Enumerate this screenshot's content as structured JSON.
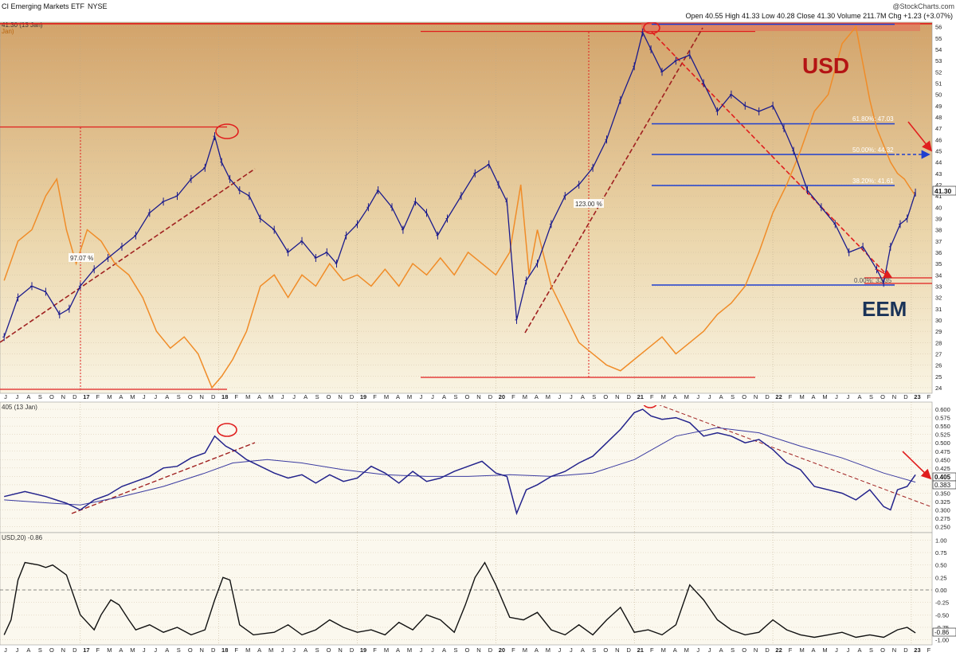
{
  "header": {
    "symbol_name": "CI Emerging Markets ETF",
    "exchange": "NYSE",
    "watermark": "@StockCharts.com",
    "ohlc": "Open 40.55  High 41.33  Low 40.28  Close 41.30  Volume 211.7M  Chg +1.23 (+3.07%)",
    "tag_price": "41.30 (13 Jan)",
    "tag_usd": "Jan)",
    "tag_mid": "405 (13 Jan)",
    "tag_corr": "USD,20) -0.86"
  },
  "annotations": {
    "usd_label": "USD",
    "eem_label": "EEM",
    "pct_1": "97.07 %",
    "pct_2": "123.00 %",
    "fib_618": "61.80%: 47.03",
    "fib_50": "50.00%: 44.32",
    "fib_382": "38.20%: 41.61",
    "fib_0": "0.00%: 33.35",
    "current_price": "41.30",
    "ratio_now": "0.405",
    "ratio_ma": "0.383",
    "corr_now": "-0.86"
  },
  "colors": {
    "price": "#1a1a8c",
    "usd": "#f08c28",
    "ratio": "#23238c",
    "corr": "#111111",
    "annotation": "#e01e1e",
    "fib": "#1f3fd0",
    "trend": "#a02020",
    "usd_text": "#b41414",
    "eem_text": "#1a3358"
  },
  "chart_data": [
    {
      "type": "line",
      "panel": "price",
      "title": "CI Emerging Markets ETF",
      "ylim": [
        23.5,
        56.4
      ],
      "y_ticks": [
        24,
        25,
        26,
        27,
        28,
        29,
        30,
        31,
        32,
        33,
        34,
        35,
        36,
        37,
        38,
        39,
        40,
        41,
        42,
        43,
        44,
        45,
        46,
        47,
        48,
        49,
        50,
        51,
        52,
        53,
        54,
        55,
        56
      ],
      "x_year_labels": [
        "17",
        "18",
        "19",
        "20",
        "21",
        "22",
        "23"
      ],
      "x_month_labels": [
        "J",
        "J",
        "A",
        "S",
        "O",
        "N",
        "D",
        "17",
        "F",
        "M",
        "A",
        "M",
        "J",
        "J",
        "A",
        "S",
        "O",
        "N",
        "D",
        "18",
        "F",
        "M",
        "A",
        "M",
        "J",
        "J",
        "A",
        "S",
        "O",
        "N",
        "D",
        "19",
        "F",
        "M",
        "A",
        "M",
        "J",
        "J",
        "A",
        "S",
        "O",
        "N",
        "D",
        "20",
        "F",
        "M",
        "A",
        "M",
        "J",
        "J",
        "A",
        "S",
        "O",
        "N",
        "D",
        "21",
        "F",
        "M",
        "A",
        "M",
        "J",
        "J",
        "A",
        "S",
        "O",
        "N",
        "D",
        "22",
        "F",
        "M",
        "A",
        "M",
        "J",
        "J",
        "A",
        "S",
        "O",
        "N",
        "D",
        "23",
        "F"
      ],
      "series": [
        {
          "name": "EEM",
          "x": [
            2016.45,
            2016.55,
            2016.65,
            2016.75,
            2016.85,
            2016.92,
            2017.0,
            2017.1,
            2017.2,
            2017.3,
            2017.4,
            2017.5,
            2017.6,
            2017.7,
            2017.8,
            2017.9,
            2017.97,
            2018.02,
            2018.08,
            2018.15,
            2018.22,
            2018.3,
            2018.4,
            2018.5,
            2018.6,
            2018.7,
            2018.78,
            2018.85,
            2018.92,
            2019.0,
            2019.08,
            2019.15,
            2019.25,
            2019.33,
            2019.42,
            2019.5,
            2019.58,
            2019.65,
            2019.75,
            2019.85,
            2019.95,
            2020.02,
            2020.08,
            2020.15,
            2020.22,
            2020.3,
            2020.4,
            2020.5,
            2020.6,
            2020.7,
            2020.8,
            2020.9,
            2021.0,
            2021.06,
            2021.12,
            2021.2,
            2021.3,
            2021.4,
            2021.5,
            2021.6,
            2021.7,
            2021.8,
            2021.9,
            2022.0,
            2022.08,
            2022.15,
            2022.25,
            2022.35,
            2022.45,
            2022.55,
            2022.65,
            2022.75,
            2022.8,
            2022.85,
            2022.92,
            2022.97,
            2023.03
          ],
          "values": [
            28.5,
            32.0,
            33.0,
            32.5,
            30.5,
            31.0,
            33.0,
            34.5,
            35.5,
            36.5,
            37.5,
            39.5,
            40.5,
            41.0,
            42.5,
            43.5,
            46.3,
            44.0,
            42.5,
            41.5,
            41.0,
            39.0,
            38.0,
            36.0,
            37.0,
            35.5,
            36.0,
            35.0,
            37.5,
            38.5,
            40.0,
            41.5,
            40.0,
            38.0,
            40.5,
            39.5,
            37.5,
            39.0,
            41.0,
            43.0,
            43.8,
            42.0,
            40.5,
            30.0,
            33.5,
            35.0,
            38.5,
            41.0,
            42.0,
            43.5,
            46.0,
            49.5,
            52.5,
            55.5,
            54.0,
            52.0,
            53.0,
            53.5,
            51.0,
            48.5,
            50.0,
            49.0,
            48.5,
            49.0,
            47.0,
            45.0,
            41.5,
            40.0,
            38.5,
            36.0,
            36.5,
            34.5,
            33.3,
            36.5,
            38.5,
            39.0,
            41.3
          ]
        },
        {
          "name": "USD",
          "x": [
            2016.45,
            2016.55,
            2016.65,
            2016.75,
            2016.83,
            2016.9,
            2016.97,
            2017.05,
            2017.15,
            2017.25,
            2017.35,
            2017.45,
            2017.55,
            2017.65,
            2017.75,
            2017.85,
            2017.95,
            2018.02,
            2018.1,
            2018.2,
            2018.3,
            2018.4,
            2018.5,
            2018.6,
            2018.7,
            2018.8,
            2018.9,
            2019.0,
            2019.1,
            2019.2,
            2019.3,
            2019.4,
            2019.5,
            2019.6,
            2019.7,
            2019.8,
            2019.9,
            2020.0,
            2020.1,
            2020.18,
            2020.24,
            2020.3,
            2020.4,
            2020.5,
            2020.6,
            2020.7,
            2020.8,
            2020.9,
            2021.0,
            2021.1,
            2021.2,
            2021.3,
            2021.4,
            2021.5,
            2021.6,
            2021.7,
            2021.8,
            2021.9,
            2022.0,
            2022.1,
            2022.2,
            2022.3,
            2022.4,
            2022.5,
            2022.6,
            2022.7,
            2022.75,
            2022.8,
            2022.85,
            2022.9,
            2022.95,
            2023.03
          ],
          "values": [
            33.5,
            37.0,
            38.0,
            41.0,
            42.5,
            38.0,
            35.0,
            38.0,
            37.0,
            35.0,
            34.0,
            32.0,
            29.0,
            27.5,
            28.5,
            27.0,
            24.0,
            25.0,
            26.5,
            29.0,
            33.0,
            34.0,
            32.0,
            34.0,
            33.0,
            35.0,
            33.5,
            34.0,
            33.0,
            34.5,
            33.0,
            35.0,
            34.0,
            35.5,
            34.0,
            36.0,
            35.0,
            34.0,
            36.0,
            42.0,
            34.0,
            38.0,
            33.0,
            30.5,
            28.0,
            27.0,
            26.0,
            25.5,
            26.5,
            27.5,
            28.5,
            27.0,
            28.0,
            29.0,
            30.5,
            31.5,
            33.0,
            36.0,
            39.5,
            42.0,
            45.0,
            48.5,
            50.0,
            54.5,
            56.0,
            49.5,
            47.0,
            45.5,
            44.0,
            43.0,
            42.5,
            41.0
          ]
        }
      ]
    },
    {
      "type": "line",
      "panel": "ratio",
      "ylim": [
        0.242,
        0.612
      ],
      "y_ticks": [
        0.25,
        0.275,
        0.3,
        0.325,
        0.35,
        0.375,
        0.4,
        0.425,
        0.45,
        0.475,
        0.5,
        0.525,
        0.55,
        0.575,
        0.6
      ],
      "series": [
        {
          "name": "",
          "x": [
            2016.45,
            2016.6,
            2016.75,
            2016.9,
            2017.0,
            2017.1,
            2017.2,
            2017.3,
            2017.4,
            2017.5,
            2017.6,
            2017.7,
            2017.8,
            2017.9,
            2017.97,
            2018.05,
            2018.12,
            2018.2,
            2018.3,
            2018.4,
            2018.5,
            2018.6,
            2018.7,
            2018.8,
            2018.9,
            2019.0,
            2019.1,
            2019.2,
            2019.3,
            2019.4,
            2019.5,
            2019.6,
            2019.7,
            2019.8,
            2019.9,
            2020.0,
            2020.08,
            2020.15,
            2020.22,
            2020.3,
            2020.4,
            2020.5,
            2020.6,
            2020.7,
            2020.8,
            2020.9,
            2021.0,
            2021.06,
            2021.12,
            2021.2,
            2021.3,
            2021.4,
            2021.5,
            2021.6,
            2021.7,
            2021.8,
            2021.9,
            2022.0,
            2022.1,
            2022.2,
            2022.3,
            2022.4,
            2022.5,
            2022.6,
            2022.7,
            2022.8,
            2022.85,
            2022.9,
            2022.97,
            2023.03
          ],
          "values": [
            0.34,
            0.355,
            0.34,
            0.32,
            0.3,
            0.33,
            0.345,
            0.37,
            0.385,
            0.4,
            0.425,
            0.43,
            0.455,
            0.47,
            0.52,
            0.49,
            0.475,
            0.45,
            0.43,
            0.41,
            0.395,
            0.405,
            0.38,
            0.405,
            0.385,
            0.395,
            0.43,
            0.41,
            0.38,
            0.415,
            0.385,
            0.395,
            0.415,
            0.43,
            0.445,
            0.41,
            0.4,
            0.29,
            0.36,
            0.375,
            0.4,
            0.415,
            0.44,
            0.46,
            0.5,
            0.54,
            0.59,
            0.6,
            0.58,
            0.57,
            0.575,
            0.56,
            0.52,
            0.53,
            0.52,
            0.5,
            0.51,
            0.48,
            0.44,
            0.42,
            0.37,
            0.36,
            0.35,
            0.33,
            0.36,
            0.31,
            0.3,
            0.36,
            0.37,
            0.405
          ]
        },
        {
          "name": "",
          "x": [
            2016.45,
            2016.8,
            2017.0,
            2017.3,
            2017.6,
            2017.9,
            2018.1,
            2018.35,
            2018.6,
            2018.9,
            2019.2,
            2019.5,
            2019.8,
            2020.1,
            2020.4,
            2020.7,
            2021.0,
            2021.3,
            2021.6,
            2021.9,
            2022.2,
            2022.5,
            2022.8,
            2023.03
          ],
          "values": [
            0.33,
            0.32,
            0.315,
            0.34,
            0.37,
            0.41,
            0.44,
            0.45,
            0.44,
            0.42,
            0.405,
            0.4,
            0.4,
            0.405,
            0.4,
            0.41,
            0.45,
            0.52,
            0.545,
            0.53,
            0.49,
            0.455,
            0.41,
            0.383
          ]
        }
      ]
    },
    {
      "type": "line",
      "panel": "correlation",
      "ylim": [
        -1.07,
        1.07
      ],
      "y_ticks": [
        -1.0,
        -0.75,
        -0.5,
        -0.25,
        0.0,
        0.25,
        0.5,
        0.75,
        1.0
      ],
      "series": [
        {
          "name": "",
          "x": [
            2016.45,
            2016.5,
            2016.55,
            2016.6,
            2016.7,
            2016.75,
            2016.8,
            2016.9,
            2017.0,
            2017.1,
            2017.15,
            2017.22,
            2017.28,
            2017.35,
            2017.4,
            2017.5,
            2017.6,
            2017.7,
            2017.8,
            2017.9,
            2017.97,
            2018.03,
            2018.08,
            2018.15,
            2018.25,
            2018.4,
            2018.5,
            2018.6,
            2018.7,
            2018.8,
            2018.9,
            2019.0,
            2019.1,
            2019.2,
            2019.3,
            2019.4,
            2019.5,
            2019.6,
            2019.7,
            2019.78,
            2019.85,
            2019.92,
            2020.0,
            2020.1,
            2020.2,
            2020.3,
            2020.4,
            2020.5,
            2020.6,
            2020.7,
            2020.8,
            2020.9,
            2021.0,
            2021.1,
            2021.2,
            2021.3,
            2021.4,
            2021.5,
            2021.6,
            2021.7,
            2021.8,
            2021.9,
            2022.0,
            2022.1,
            2022.2,
            2022.3,
            2022.4,
            2022.5,
            2022.6,
            2022.7,
            2022.8,
            2022.9,
            2022.97,
            2023.03
          ],
          "values": [
            -0.9,
            -0.6,
            0.2,
            0.55,
            0.5,
            0.45,
            0.5,
            0.3,
            -0.5,
            -0.8,
            -0.5,
            -0.2,
            -0.3,
            -0.6,
            -0.8,
            -0.7,
            -0.85,
            -0.75,
            -0.9,
            -0.8,
            -0.2,
            0.25,
            0.2,
            -0.7,
            -0.9,
            -0.85,
            -0.7,
            -0.9,
            -0.8,
            -0.6,
            -0.75,
            -0.85,
            -0.8,
            -0.9,
            -0.65,
            -0.8,
            -0.5,
            -0.6,
            -0.85,
            -0.3,
            0.25,
            0.55,
            0.1,
            -0.55,
            -0.6,
            -0.45,
            -0.8,
            -0.9,
            -0.7,
            -0.9,
            -0.6,
            -0.35,
            -0.85,
            -0.8,
            -0.9,
            -0.7,
            0.1,
            -0.2,
            -0.6,
            -0.8,
            -0.9,
            -0.85,
            -0.6,
            -0.8,
            -0.9,
            -0.95,
            -0.9,
            -0.85,
            -0.95,
            -0.9,
            -0.95,
            -0.8,
            -0.75,
            -0.86
          ]
        }
      ]
    }
  ]
}
